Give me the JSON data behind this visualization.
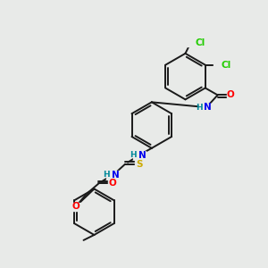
{
  "bg_color": "#e8eae8",
  "bond_color": "#1a1a1a",
  "atom_colors": {
    "Cl": "#22cc00",
    "O": "#ff0000",
    "N": "#0000ee",
    "S": "#ccaa00",
    "H": "#008899",
    "C": "#1a1a1a"
  },
  "figsize": [
    3.0,
    3.0
  ],
  "dpi": 100
}
